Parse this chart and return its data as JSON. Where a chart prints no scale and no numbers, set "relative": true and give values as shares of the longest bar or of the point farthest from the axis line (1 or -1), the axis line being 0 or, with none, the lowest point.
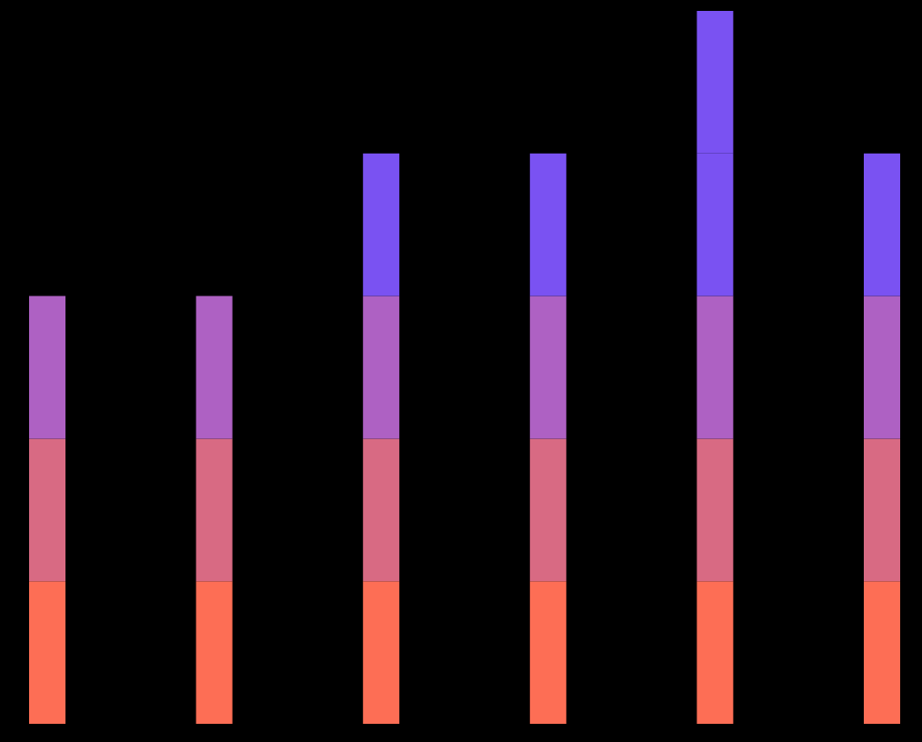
{
  "chart_data": {
    "type": "bar",
    "relative": true,
    "stacked": true,
    "categories": [
      null,
      null,
      null,
      null,
      null,
      null
    ],
    "series": [
      {
        "color": "#fd6e55",
        "values": [
          0.2,
          0.2,
          0.2,
          0.2,
          0.2,
          0.2
        ]
      },
      {
        "color": "#d86a83",
        "values": [
          0.2,
          0.2,
          0.2,
          0.2,
          0.2,
          0.2
        ]
      },
      {
        "color": "#ae61c3",
        "values": [
          0.2,
          0.2,
          0.2,
          0.2,
          0.2,
          0.2
        ]
      },
      {
        "color": "#7a52f2",
        "values": [
          null,
          null,
          0.2,
          0.2,
          0.2,
          0.2
        ]
      },
      {
        "color": "#7a52f2",
        "values": [
          null,
          null,
          null,
          null,
          0.2,
          null
        ]
      }
    ]
  }
}
